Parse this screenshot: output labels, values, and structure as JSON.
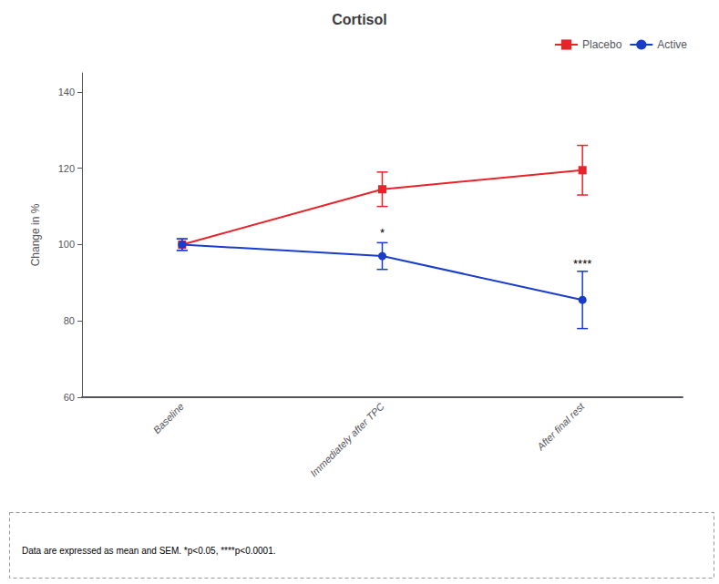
{
  "chart_data": {
    "type": "line",
    "title": "Cortisol",
    "ylabel": "Change in %",
    "categories": [
      "Baseline",
      "Immediately after TPC",
      "After final rest"
    ],
    "series": [
      {
        "name": "Placebo",
        "color": "#e8232a",
        "marker": "square",
        "values": [
          100,
          114.5,
          119.5
        ],
        "errors": [
          1.5,
          4.5,
          6.5
        ]
      },
      {
        "name": "Active",
        "color": "#1a3ccc",
        "marker": "circle",
        "values": [
          100,
          97,
          85.5
        ],
        "errors": [
          1.5,
          3.5,
          7.5
        ]
      }
    ],
    "ylim": [
      60,
      145
    ],
    "yticks": [
      60,
      80,
      100,
      120,
      140
    ],
    "annotations": [
      {
        "x": "Immediately after TPC",
        "y": 101.5,
        "text": "*"
      },
      {
        "x": "After final rest",
        "y": 93.5,
        "text": "****"
      }
    ],
    "caption": "Data are expressed as mean and SEM. *p<0.05, ****p<0.0001.",
    "legend": "upper right",
    "grid": false
  }
}
